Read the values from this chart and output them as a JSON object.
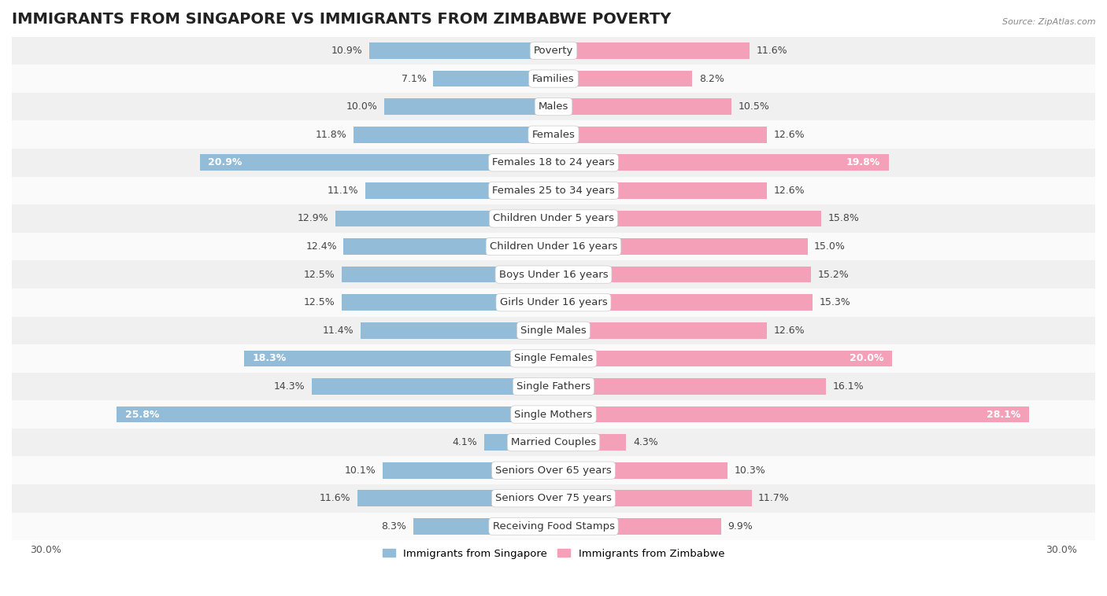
{
  "title": "IMMIGRANTS FROM SINGAPORE VS IMMIGRANTS FROM ZIMBABWE POVERTY",
  "source": "Source: ZipAtlas.com",
  "categories": [
    "Poverty",
    "Families",
    "Males",
    "Females",
    "Females 18 to 24 years",
    "Females 25 to 34 years",
    "Children Under 5 years",
    "Children Under 16 years",
    "Boys Under 16 years",
    "Girls Under 16 years",
    "Single Males",
    "Single Females",
    "Single Fathers",
    "Single Mothers",
    "Married Couples",
    "Seniors Over 65 years",
    "Seniors Over 75 years",
    "Receiving Food Stamps"
  ],
  "singapore_values": [
    10.9,
    7.1,
    10.0,
    11.8,
    20.9,
    11.1,
    12.9,
    12.4,
    12.5,
    12.5,
    11.4,
    18.3,
    14.3,
    25.8,
    4.1,
    10.1,
    11.6,
    8.3
  ],
  "zimbabwe_values": [
    11.6,
    8.2,
    10.5,
    12.6,
    19.8,
    12.6,
    15.8,
    15.0,
    15.2,
    15.3,
    12.6,
    20.0,
    16.1,
    28.1,
    4.3,
    10.3,
    11.7,
    9.9
  ],
  "singapore_color": "#92bcd8",
  "zimbabwe_color": "#f4a0b8",
  "bar_height": 0.58,
  "row_even_color": "#f0f0f0",
  "row_odd_color": "#fafafa",
  "legend_singapore": "Immigrants from Singapore",
  "legend_zimbabwe": "Immigrants from Zimbabwe",
  "title_fontsize": 14,
  "label_fontsize": 9.5,
  "value_fontsize": 9,
  "large_threshold": 17.0,
  "axis_max": 30.0
}
